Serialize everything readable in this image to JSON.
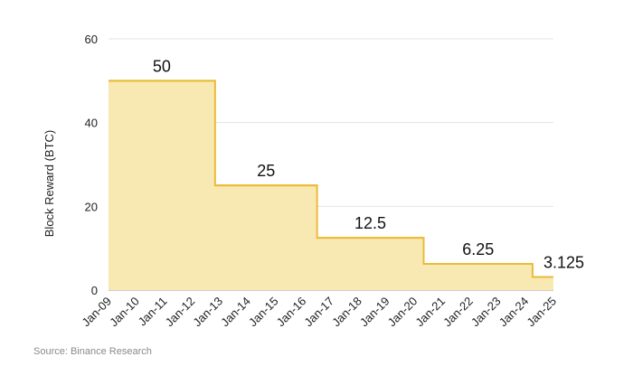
{
  "source": "Source: Binance Research",
  "chart_data": {
    "type": "area",
    "step": true,
    "ylabel": "Block Reward (BTC)",
    "xlabel": "",
    "title": "",
    "ylim": [
      0,
      60
    ],
    "yticks": [
      0,
      20,
      40,
      60
    ],
    "grid": true,
    "categories": [
      "Jan-09",
      "Jan-10",
      "Jan-11",
      "Jan-12",
      "Jan-13",
      "Jan-14",
      "Jan-15",
      "Jan-16",
      "Jan-17",
      "Jan-18",
      "Jan-19",
      "Jan-20",
      "Jan-21",
      "Jan-22",
      "Jan-23",
      "Jan-24",
      "Jan-25"
    ],
    "steps": [
      {
        "from": "Jan-09",
        "to": "Nov-12",
        "value": 50,
        "label": "50"
      },
      {
        "from": "Nov-12",
        "to": "Jul-16",
        "value": 25,
        "label": "25"
      },
      {
        "from": "Jul-16",
        "to": "May-20",
        "value": 12.5,
        "label": "12.5"
      },
      {
        "from": "May-20",
        "to": "Apr-24",
        "value": 6.25,
        "label": "6.25"
      },
      {
        "from": "Apr-24",
        "to": "Jan-25",
        "value": 3.125,
        "label": "3.125"
      }
    ],
    "colors": {
      "fill": "#f8e9b2",
      "line": "#eabb3b",
      "grid": "#e3e3e3",
      "axis": "#999999"
    }
  }
}
